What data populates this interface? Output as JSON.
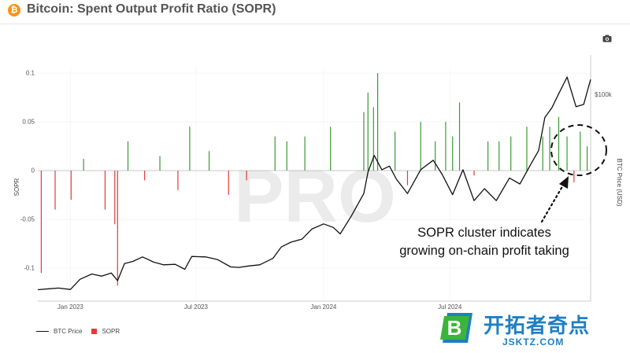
{
  "header": {
    "title": "Bitcoin: Spent Output Profit Ratio (SOPR)",
    "icon": "bitcoin-icon"
  },
  "toolbar": {
    "icon": "camera-icon"
  },
  "annotation": {
    "line1": "SOPR cluster indicates",
    "line2": "growing on-chain profit taking"
  },
  "logo": {
    "text": "开拓者奇点",
    "url": "JSKTZ.COM",
    "letter": "B"
  },
  "watermark": "PRO",
  "chart_data": {
    "type": "bar",
    "title": "Bitcoin: Spent Output Profit Ratio (SOPR)",
    "ylabel": "SOPR",
    "y2label": "BTC Price (USD)",
    "ylim": [
      -0.125,
      0.1
    ],
    "yticks": [
      "0.1",
      "0.05",
      "0",
      "-0.05",
      "-0.1"
    ],
    "ytick_values": [
      0.1,
      0.05,
      0,
      -0.05,
      -0.1
    ],
    "y2ticks": [
      "$100k"
    ],
    "y2_range": [
      16000,
      106000
    ],
    "y2tick_values": [
      100000
    ],
    "xlim": [
      "2022-11-15",
      "2025-01-20"
    ],
    "xticks": [
      "Jan 2023",
      "Jul 2023",
      "Jan 2024",
      "Jul 2024"
    ],
    "xtick_dates": [
      "2023-01-01",
      "2023-07-01",
      "2024-01-01",
      "2024-07-01"
    ],
    "legend": [
      "BTC Price",
      "SOPR"
    ],
    "legend_position": "bottom-left",
    "colors": {
      "positive": "#3a9a35",
      "negative": "#e23b3b",
      "price": "#111111"
    },
    "series": [
      {
        "name": "BTC Price",
        "kind": "line",
        "dates": [
          "2022-11-15",
          "2022-12-01",
          "2022-12-15",
          "2023-01-01",
          "2023-01-15",
          "2023-02-01",
          "2023-02-15",
          "2023-03-01",
          "2023-03-10",
          "2023-03-20",
          "2023-04-01",
          "2023-04-15",
          "2023-05-01",
          "2023-05-15",
          "2023-06-01",
          "2023-06-15",
          "2023-06-25",
          "2023-07-15",
          "2023-08-01",
          "2023-08-20",
          "2023-09-01",
          "2023-09-15",
          "2023-10-01",
          "2023-10-20",
          "2023-11-01",
          "2023-11-15",
          "2023-12-01",
          "2023-12-15",
          "2024-01-01",
          "2024-01-15",
          "2024-01-25",
          "2024-02-10",
          "2024-02-28",
          "2024-03-05",
          "2024-03-14",
          "2024-03-25",
          "2024-04-05",
          "2024-04-15",
          "2024-05-01",
          "2024-05-20",
          "2024-06-07",
          "2024-06-20",
          "2024-07-05",
          "2024-07-20",
          "2024-08-05",
          "2024-08-20",
          "2024-09-06",
          "2024-09-25",
          "2024-10-10",
          "2024-10-29",
          "2024-11-06",
          "2024-11-15",
          "2024-11-25",
          "2024-12-05",
          "2024-12-17",
          "2024-12-30",
          "2025-01-10",
          "2025-01-20"
        ],
        "values": [
          16500,
          16900,
          17200,
          16600,
          20900,
          23100,
          22200,
          23500,
          20300,
          27500,
          28400,
          30300,
          28100,
          27000,
          27200,
          25100,
          30500,
          30300,
          29200,
          26100,
          25900,
          26500,
          27000,
          29700,
          34500,
          36500,
          37800,
          42000,
          44200,
          42700,
          40000,
          47500,
          57000,
          66000,
          73000,
          67000,
          68500,
          63000,
          57000,
          67000,
          71000,
          65000,
          56500,
          67000,
          54000,
          59000,
          54000,
          63500,
          61000,
          71000,
          75000,
          89000,
          93000,
          99000,
          106000,
          93500,
          94500,
          105000
        ]
      },
      {
        "name": "SOPR",
        "kind": "bar",
        "dates": [
          "2022-11-20",
          "2022-12-10",
          "2023-01-02",
          "2023-01-20",
          "2023-02-20",
          "2023-03-06",
          "2023-03-10",
          "2023-03-25",
          "2023-04-18",
          "2023-05-10",
          "2023-06-05",
          "2023-06-22",
          "2023-07-20",
          "2023-08-17",
          "2023-09-12",
          "2023-10-23",
          "2023-11-09",
          "2023-12-05",
          "2024-01-11",
          "2024-02-28",
          "2024-03-05",
          "2024-03-13",
          "2024-03-19",
          "2024-04-13",
          "2024-05-01",
          "2024-05-20",
          "2024-06-10",
          "2024-06-25",
          "2024-07-05",
          "2024-07-15",
          "2024-08-05",
          "2024-08-25",
          "2024-09-10",
          "2024-09-27",
          "2024-10-20",
          "2024-11-12",
          "2024-11-22",
          "2024-12-05",
          "2024-12-17",
          "2024-12-27",
          "2025-01-05",
          "2025-01-15"
        ],
        "values": [
          -0.105,
          -0.04,
          -0.03,
          0.012,
          -0.04,
          -0.055,
          -0.118,
          0.03,
          -0.01,
          0.015,
          -0.02,
          0.045,
          0.02,
          -0.025,
          -0.01,
          0.035,
          0.03,
          0.035,
          0.045,
          0.06,
          0.08,
          0.065,
          0.1,
          0.04,
          -0.015,
          0.05,
          0.03,
          0.05,
          0.035,
          0.07,
          -0.005,
          0.03,
          0.03,
          0.035,
          0.045,
          0.035,
          0.045,
          0.055,
          0.035,
          -0.012,
          0.04,
          0.025
        ]
      }
    ]
  }
}
